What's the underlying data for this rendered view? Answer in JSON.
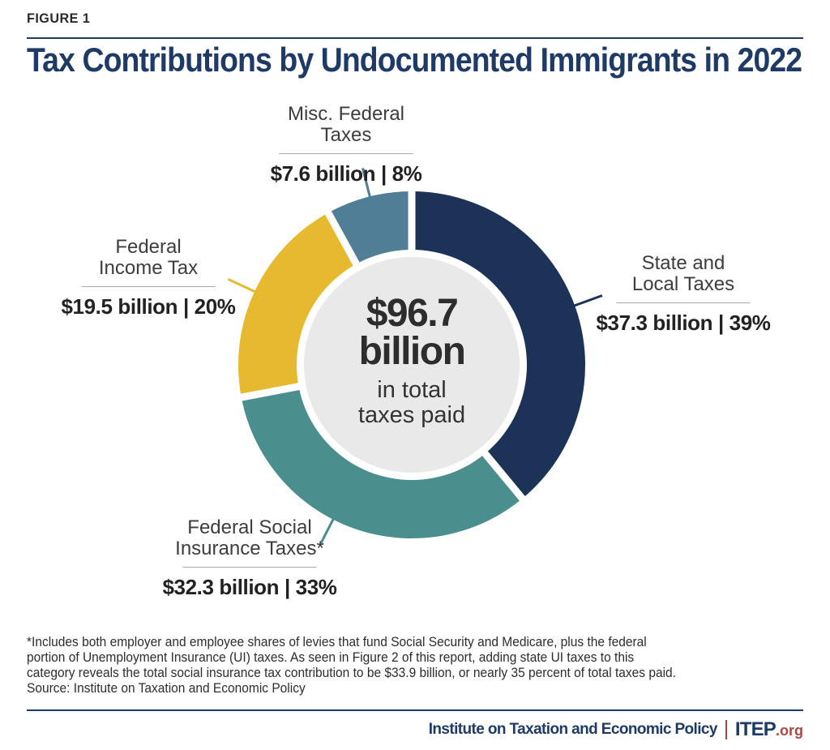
{
  "figure_label": "FIGURE 1",
  "title": "Tax Contributions by Undocumented Immigrants in 2022",
  "colors": {
    "navy_accent": "#1e3a66",
    "red_accent": "#ae4540",
    "hole_fill": "#e9e9e9"
  },
  "chart_data": {
    "type": "pie",
    "subtype": "donut",
    "title": "Tax Contributions by Undocumented Immigrants in 2022",
    "direction": "clockwise",
    "start_angle_deg": 0,
    "total_value_billion": 96.7,
    "total_label": {
      "value": "$96.7",
      "unit": "billion",
      "caption_lines": [
        "in total",
        "taxes paid"
      ]
    },
    "slices": [
      {
        "name": "State and Local Taxes",
        "name_line1": "State and",
        "name_line2": "Local Taxes",
        "amount_billion": 37.3,
        "percent": 39,
        "value_text": "$37.3 billion | 39%",
        "color": "#1c3357",
        "leader_angle_deg": 70
      },
      {
        "name": "Federal Social Insurance Taxes*",
        "name_line1": "Federal Social",
        "name_line2": "Insurance Taxes*",
        "amount_billion": 32.3,
        "percent": 33,
        "value_text": "$32.3 billion | 33%",
        "color": "#4a8e8d",
        "leader_angle_deg": 207
      },
      {
        "name": "Federal Income Tax",
        "name_line1": "Federal",
        "name_line2": "Income Tax",
        "amount_billion": 19.5,
        "percent": 20,
        "value_text": "$19.5 billion | 20%",
        "color": "#e6b92e",
        "leader_angle_deg": 295
      },
      {
        "name": "Misc. Federal Taxes",
        "name_line1": "Misc. Federal",
        "name_line2": "Taxes",
        "amount_billion": 7.6,
        "percent": 8,
        "value_text": "$7.6 billion | 8%",
        "color": "#4f7e96",
        "leader_angle_deg": 346
      }
    ]
  },
  "footnote": {
    "lines": [
      "*Includes both employer and employee shares of levies that fund Social Security and Medicare, plus the federal",
      "portion of Unemployment Insurance (UI) taxes. As seen in Figure 2 of this report, adding state UI taxes to this",
      "category reveals the total social insurance tax contribution to be $33.9 billion, or nearly 35 percent of total taxes paid.",
      "Source: Institute on Taxation and Economic Policy"
    ]
  },
  "footer": {
    "org": "Institute on Taxation and Economic Policy",
    "separator": "|",
    "brand": "ITEP",
    "brand_suffix": ".org"
  }
}
